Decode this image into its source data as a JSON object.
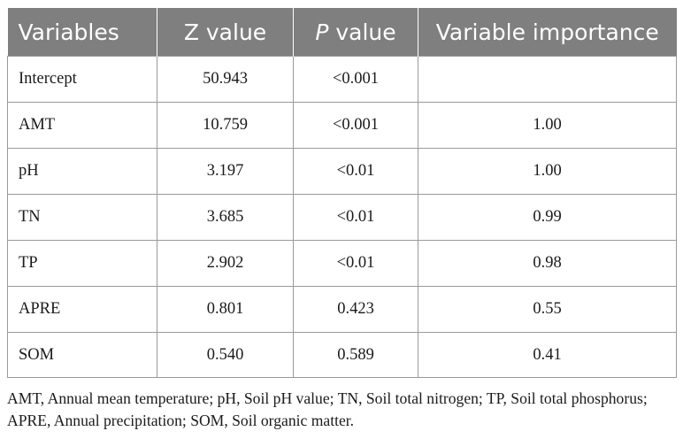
{
  "table": {
    "headers": [
      {
        "text": "Variables",
        "italic_part": "",
        "rest": ""
      },
      {
        "text": "Z value",
        "italic_part": "",
        "rest": ""
      },
      {
        "text": "",
        "italic_part": "P",
        "rest": " value"
      },
      {
        "text": "Variable importance",
        "italic_part": "",
        "rest": ""
      }
    ],
    "rows": [
      [
        "Intercept",
        "50.943",
        "<0.001",
        ""
      ],
      [
        "AMT",
        "10.759",
        "<0.001",
        "1.00"
      ],
      [
        "pH",
        "3.197",
        "<0.01",
        "1.00"
      ],
      [
        "TN",
        "3.685",
        "<0.01",
        "0.99"
      ],
      [
        "TP",
        "2.902",
        "<0.01",
        "0.98"
      ],
      [
        "APRE",
        "0.801",
        "0.423",
        "0.55"
      ],
      [
        "SOM",
        "0.540",
        "0.589",
        "0.41"
      ]
    ]
  },
  "footnote": "AMT, Annual mean temperature; pH, Soil pH value; TN, Soil total nitrogen; TP, Soil total phosphorus; APRE, Annual precipitation; SOM, Soil organic matter.",
  "colors": {
    "header_bg": "#7f7f7f",
    "header_text": "#ffffff",
    "border": "#9a9a9a"
  }
}
